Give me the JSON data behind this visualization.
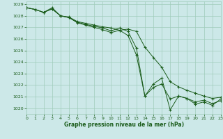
{
  "bg_color": "#cce8e8",
  "grid_color": "#a0ccbb",
  "line_color": "#1a5c1a",
  "marker_color": "#1a5c1a",
  "xlabel": "Graphe pression niveau de la mer (hPa)",
  "xlim": [
    0,
    23
  ],
  "ylim": [
    1019.5,
    1029.25
  ],
  "yticks": [
    1020,
    1021,
    1022,
    1023,
    1024,
    1025,
    1026,
    1027,
    1028,
    1029
  ],
  "xticks": [
    0,
    1,
    2,
    3,
    4,
    5,
    6,
    7,
    8,
    9,
    10,
    11,
    12,
    13,
    14,
    15,
    16,
    17,
    18,
    19,
    20,
    21,
    22,
    23
  ],
  "series": [
    {
      "x": [
        0,
        1,
        2,
        3,
        4,
        5,
        6,
        7,
        8,
        9,
        10,
        11,
        12,
        13,
        14,
        15,
        16,
        17,
        18,
        19,
        20,
        21,
        22,
        23
      ],
      "y": [
        1028.7,
        1028.55,
        1028.3,
        1028.6,
        1028.0,
        1027.85,
        1027.45,
        1027.25,
        1027.1,
        1026.95,
        1026.7,
        1026.95,
        1026.65,
        1025.2,
        1021.05,
        1022.1,
        1022.6,
        1019.85,
        1021.05,
        1020.85,
        1020.35,
        1020.55,
        1020.25,
        1020.8
      ]
    },
    {
      "x": [
        0,
        1,
        2,
        3,
        4,
        5,
        6,
        7,
        8,
        9,
        10,
        11,
        12,
        13,
        14,
        15,
        16,
        17,
        18,
        19,
        20,
        21,
        22,
        23
      ],
      "y": [
        1028.7,
        1028.55,
        1028.3,
        1028.7,
        1028.0,
        1027.9,
        1027.5,
        1027.35,
        1027.2,
        1027.05,
        1026.95,
        1026.75,
        1026.85,
        1026.65,
        1025.3,
        1024.4,
        1023.55,
        1022.3,
        1021.85,
        1021.55,
        1021.3,
        1021.05,
        1020.85,
        1020.95
      ]
    },
    {
      "x": [
        0,
        1,
        2,
        3,
        4,
        5,
        6,
        7,
        8,
        9,
        10,
        11,
        12,
        13,
        14,
        15,
        16,
        17,
        18,
        19,
        20,
        21,
        22,
        23
      ],
      "y": [
        1028.7,
        1028.55,
        1028.3,
        1028.6,
        1028.0,
        1027.85,
        1027.4,
        1027.2,
        1027.0,
        1026.8,
        1026.55,
        1026.75,
        1026.3,
        1024.6,
        1021.05,
        1021.8,
        1022.1,
        1020.8,
        1021.05,
        1020.85,
        1020.55,
        1020.7,
        1020.4,
        1020.65
      ]
    }
  ]
}
